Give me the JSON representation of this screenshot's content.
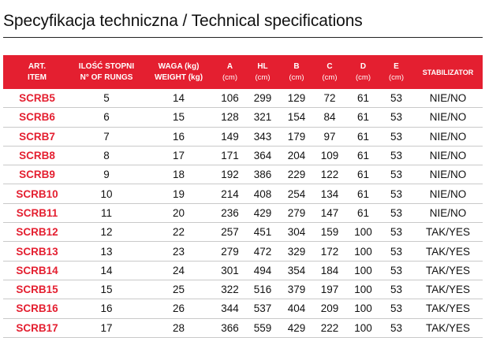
{
  "title": "Specyfikacja techniczna / Technical specifications",
  "headers": {
    "item_pl": "ART.",
    "item_en": "ITEM",
    "rungs_pl": "ILOŚĆ STOPNI",
    "rungs_en": "N° OF RUNGS",
    "weight_pl": "WAGA (kg)",
    "weight_en": "WEIGHT (kg)",
    "a": "A",
    "hl": "HL",
    "b": "B",
    "c": "C",
    "d": "D",
    "e": "E",
    "unit": "(cm)",
    "stab": "STABILIZATOR"
  },
  "rows": [
    {
      "item": "SCRB5",
      "rungs": "5",
      "weight": "14",
      "a": "106",
      "hl": "299",
      "b": "129",
      "c": "72",
      "d": "61",
      "e": "53",
      "stab": "NIE/NO"
    },
    {
      "item": "SCRB6",
      "rungs": "6",
      "weight": "15",
      "a": "128",
      "hl": "321",
      "b": "154",
      "c": "84",
      "d": "61",
      "e": "53",
      "stab": "NIE/NO"
    },
    {
      "item": "SCRB7",
      "rungs": "7",
      "weight": "16",
      "a": "149",
      "hl": "343",
      "b": "179",
      "c": "97",
      "d": "61",
      "e": "53",
      "stab": "NIE/NO"
    },
    {
      "item": "SCRB8",
      "rungs": "8",
      "weight": "17",
      "a": "171",
      "hl": "364",
      "b": "204",
      "c": "109",
      "d": "61",
      "e": "53",
      "stab": "NIE/NO"
    },
    {
      "item": "SCRB9",
      "rungs": "9",
      "weight": "18",
      "a": "192",
      "hl": "386",
      "b": "229",
      "c": "122",
      "d": "61",
      "e": "53",
      "stab": "NIE/NO"
    },
    {
      "item": "SCRB10",
      "rungs": "10",
      "weight": "19",
      "a": "214",
      "hl": "408",
      "b": "254",
      "c": "134",
      "d": "61",
      "e": "53",
      "stab": "NIE/NO"
    },
    {
      "item": "SCRB11",
      "rungs": "11",
      "weight": "20",
      "a": "236",
      "hl": "429",
      "b": "279",
      "c": "147",
      "d": "61",
      "e": "53",
      "stab": "NIE/NO"
    },
    {
      "item": "SCRB12",
      "rungs": "12",
      "weight": "22",
      "a": "257",
      "hl": "451",
      "b": "304",
      "c": "159",
      "d": "100",
      "e": "53",
      "stab": "TAK/YES"
    },
    {
      "item": "SCRB13",
      "rungs": "13",
      "weight": "23",
      "a": "279",
      "hl": "472",
      "b": "329",
      "c": "172",
      "d": "100",
      "e": "53",
      "stab": "TAK/YES"
    },
    {
      "item": "SCRB14",
      "rungs": "14",
      "weight": "24",
      "a": "301",
      "hl": "494",
      "b": "354",
      "c": "184",
      "d": "100",
      "e": "53",
      "stab": "TAK/YES"
    },
    {
      "item": "SCRB15",
      "rungs": "15",
      "weight": "25",
      "a": "322",
      "hl": "516",
      "b": "379",
      "c": "197",
      "d": "100",
      "e": "53",
      "stab": "TAK/YES"
    },
    {
      "item": "SCRB16",
      "rungs": "16",
      "weight": "26",
      "a": "344",
      "hl": "537",
      "b": "404",
      "c": "209",
      "d": "100",
      "e": "53",
      "stab": "TAK/YES"
    },
    {
      "item": "SCRB17",
      "rungs": "17",
      "weight": "28",
      "a": "366",
      "hl": "559",
      "b": "429",
      "c": "222",
      "d": "100",
      "e": "53",
      "stab": "TAK/YES"
    }
  ],
  "colors": {
    "accent": "#e41f30",
    "text": "#111111",
    "divider": "#c9c9c9"
  }
}
